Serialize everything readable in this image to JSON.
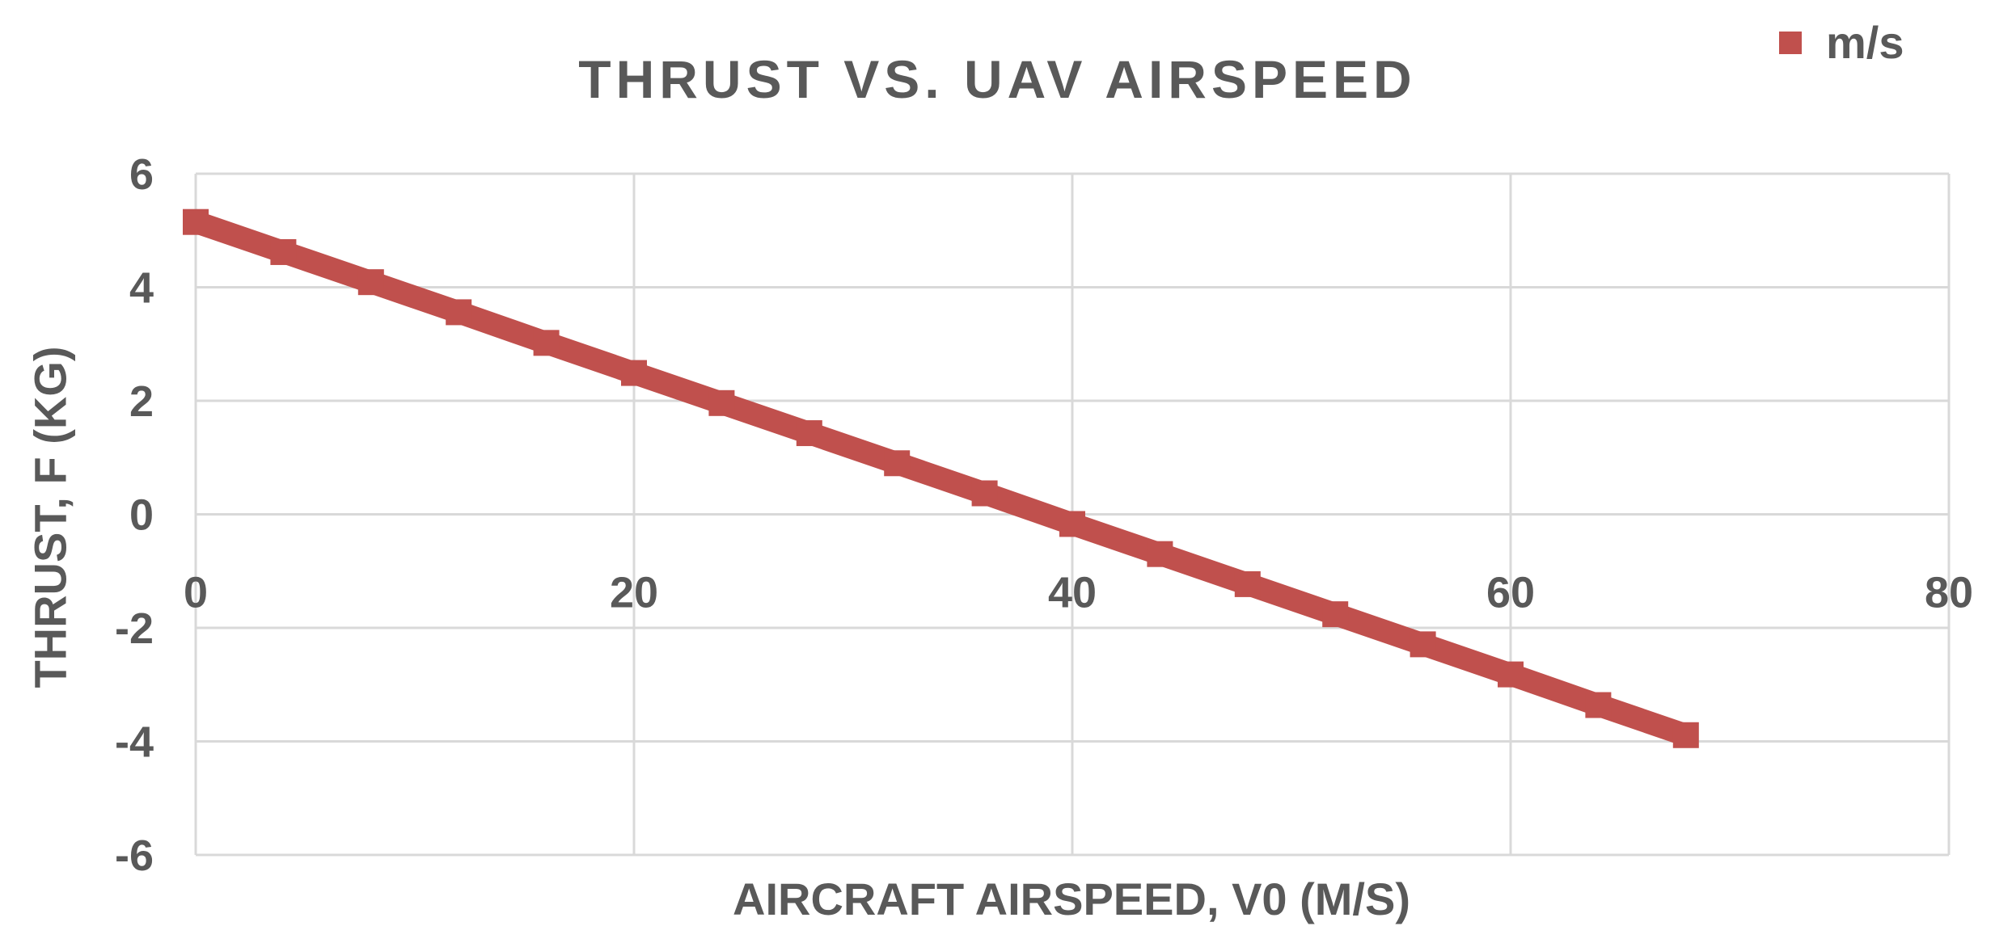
{
  "chart_data": {
    "type": "scatter",
    "title": "THRUST VS. UAV AIRSPEED",
    "xlabel": "AIRCRAFT AIRSPEED, V0 (M/S)",
    "ylabel": "THRUST, F (KG)",
    "xlim": [
      0,
      80
    ],
    "ylim": [
      -6,
      6
    ],
    "x_ticks": [
      0,
      20,
      40,
      60,
      80
    ],
    "y_ticks": [
      6,
      4,
      2,
      0,
      -2,
      -4,
      -6
    ],
    "grid": true,
    "legend_position": "top-right",
    "series": [
      {
        "name": "m/s",
        "color": "#C0504D",
        "marker": "square",
        "x": [
          0,
          4,
          8,
          12,
          16,
          20,
          24,
          28,
          32,
          36,
          40,
          44,
          48,
          52,
          56,
          60,
          64,
          68
        ],
        "y": [
          5.15,
          4.62,
          4.09,
          3.56,
          3.02,
          2.49,
          1.96,
          1.43,
          0.9,
          0.37,
          -0.17,
          -0.7,
          -1.23,
          -1.76,
          -2.29,
          -2.82,
          -3.36,
          -3.89
        ]
      }
    ]
  }
}
